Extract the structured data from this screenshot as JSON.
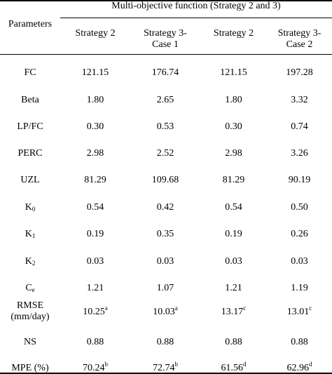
{
  "table": {
    "param_header": "Parameters",
    "group_header": "Multi-objective function (Strategy 2 and 3)",
    "columns": [
      {
        "line1": "Strategy 2",
        "line2": ""
      },
      {
        "line1": "Strategy 3-",
        "line2": "Case 1"
      },
      {
        "line1": "Strategy 2",
        "line2": ""
      },
      {
        "line1": "Strategy 3-",
        "line2": "Case 2"
      }
    ],
    "rows": [
      {
        "base": "FC",
        "sub": "",
        "line2": "",
        "values": [
          {
            "v": "121.15",
            "s": ""
          },
          {
            "v": "176.74",
            "s": ""
          },
          {
            "v": "121.15",
            "s": ""
          },
          {
            "v": "197.28",
            "s": ""
          }
        ]
      },
      {
        "base": "Beta",
        "sub": "",
        "line2": "",
        "values": [
          {
            "v": "1.80",
            "s": ""
          },
          {
            "v": "2.65",
            "s": ""
          },
          {
            "v": "1.80",
            "s": ""
          },
          {
            "v": "3.32",
            "s": ""
          }
        ]
      },
      {
        "base": "LP/FC",
        "sub": "",
        "line2": "",
        "values": [
          {
            "v": "0.30",
            "s": ""
          },
          {
            "v": "0.53",
            "s": ""
          },
          {
            "v": "0.30",
            "s": ""
          },
          {
            "v": "0.74",
            "s": ""
          }
        ]
      },
      {
        "base": "PERC",
        "sub": "",
        "line2": "",
        "values": [
          {
            "v": "2.98",
            "s": ""
          },
          {
            "v": "2.52",
            "s": ""
          },
          {
            "v": "2.98",
            "s": ""
          },
          {
            "v": "3.26",
            "s": ""
          }
        ]
      },
      {
        "base": "UZL",
        "sub": "",
        "line2": "",
        "values": [
          {
            "v": "81.29",
            "s": ""
          },
          {
            "v": "109.68",
            "s": ""
          },
          {
            "v": "81.29",
            "s": ""
          },
          {
            "v": "90.19",
            "s": ""
          }
        ]
      },
      {
        "base": "K",
        "sub": "0",
        "line2": "",
        "values": [
          {
            "v": "0.54",
            "s": ""
          },
          {
            "v": "0.42",
            "s": ""
          },
          {
            "v": "0.54",
            "s": ""
          },
          {
            "v": "0.50",
            "s": ""
          }
        ]
      },
      {
        "base": "K",
        "sub": "1",
        "line2": "",
        "values": [
          {
            "v": "0.19",
            "s": ""
          },
          {
            "v": "0.35",
            "s": ""
          },
          {
            "v": "0.19",
            "s": ""
          },
          {
            "v": "0.26",
            "s": ""
          }
        ]
      },
      {
        "base": "K",
        "sub": "2",
        "line2": "",
        "values": [
          {
            "v": "0.03",
            "s": ""
          },
          {
            "v": "0.03",
            "s": ""
          },
          {
            "v": "0.03",
            "s": ""
          },
          {
            "v": "0.03",
            "s": ""
          }
        ]
      },
      {
        "base": "C",
        "sub": "e",
        "line2": "",
        "values": [
          {
            "v": "1.21",
            "s": ""
          },
          {
            "v": "1.07",
            "s": ""
          },
          {
            "v": "1.21",
            "s": ""
          },
          {
            "v": "1.19",
            "s": ""
          }
        ]
      },
      {
        "base": "RMSE",
        "sub": "",
        "line2": "(mm/day)",
        "values": [
          {
            "v": "10.25",
            "s": "a"
          },
          {
            "v": "10.03",
            "s": "a"
          },
          {
            "v": "13.17",
            "s": "c"
          },
          {
            "v": "13.01",
            "s": "c"
          }
        ]
      },
      {
        "base": "NS",
        "sub": "",
        "line2": "",
        "values": [
          {
            "v": "0.88",
            "s": ""
          },
          {
            "v": "0.88",
            "s": ""
          },
          {
            "v": "0.88",
            "s": ""
          },
          {
            "v": "0.88",
            "s": ""
          }
        ]
      },
      {
        "base": "MPE (%)",
        "sub": "",
        "line2": "",
        "values": [
          {
            "v": "70.24",
            "s": "b"
          },
          {
            "v": "72.74",
            "s": "b"
          },
          {
            "v": "61.56",
            "s": "d"
          },
          {
            "v": "62.96",
            "s": "d"
          }
        ]
      }
    ]
  }
}
